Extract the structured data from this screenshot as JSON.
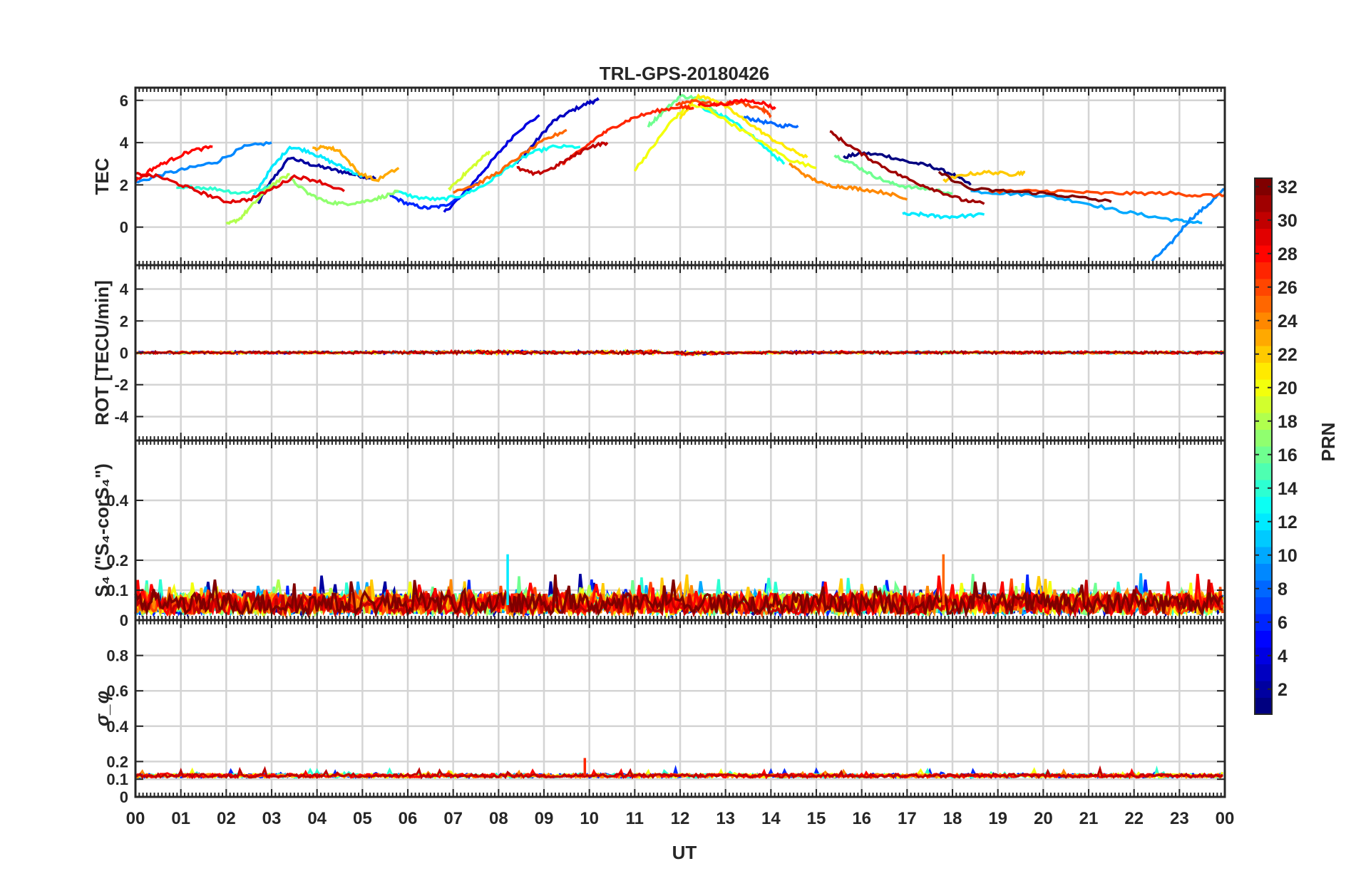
{
  "title": "TRL-GPS-20180426",
  "x_axis": {
    "label": "UT",
    "ticks": [
      "00",
      "01",
      "02",
      "03",
      "04",
      "05",
      "06",
      "07",
      "08",
      "09",
      "10",
      "11",
      "12",
      "13",
      "14",
      "15",
      "16",
      "17",
      "18",
      "19",
      "20",
      "21",
      "22",
      "23",
      "00"
    ]
  },
  "colorbar": {
    "label": "PRN",
    "range": [
      1,
      32
    ],
    "tick_labels": [
      "2",
      "4",
      "6",
      "8",
      "10",
      "12",
      "14",
      "16",
      "18",
      "20",
      "22",
      "24",
      "26",
      "28",
      "30",
      "32"
    ],
    "colormap": "jet"
  },
  "chart_data": [
    {
      "type": "line",
      "panel": "TEC",
      "ylabel": "TEC",
      "xlim": [
        0,
        24
      ],
      "ylim": [
        -1.8,
        6.6
      ],
      "yticks": [
        "0",
        "2",
        "4",
        "6"
      ],
      "grid": true,
      "series": [
        {
          "prn": 2,
          "x": [
            2.7,
            3.0,
            3.4,
            3.8,
            4.2,
            4.6,
            5.0,
            5.3
          ],
          "values": [
            1.1,
            2.2,
            3.3,
            3.0,
            2.8,
            2.6,
            2.4,
            2.3
          ]
        },
        {
          "prn": 3,
          "x": [
            8.4,
            8.8,
            9.2,
            9.6,
            10.0,
            10.2
          ],
          "values": [
            3.0,
            4.0,
            5.0,
            5.5,
            5.9,
            6.0
          ]
        },
        {
          "prn": 4,
          "x": [
            6.8,
            7.2,
            7.6,
            8.0,
            8.4,
            8.9
          ],
          "values": [
            0.7,
            1.5,
            2.5,
            3.5,
            4.5,
            5.3
          ]
        },
        {
          "prn": 1,
          "x": [
            15.6,
            16.0,
            16.5,
            17.0,
            17.5,
            18.0,
            18.4
          ],
          "values": [
            3.3,
            3.5,
            3.4,
            3.1,
            2.9,
            2.5,
            2.0
          ]
        },
        {
          "prn": 6,
          "x": [
            5.6,
            6.0,
            6.4,
            6.8,
            7.2,
            7.6
          ],
          "values": [
            1.5,
            1.1,
            0.9,
            1.0,
            1.5,
            2.2
          ]
        },
        {
          "prn": 9,
          "x": [
            0.0,
            0.6,
            1.2,
            1.8,
            2.4,
            3.0
          ],
          "values": [
            2.1,
            2.5,
            2.8,
            3.1,
            3.8,
            4.0
          ]
        },
        {
          "prn": 8,
          "x": [
            13.4,
            13.8,
            14.2,
            14.6
          ],
          "values": [
            5.2,
            5.0,
            4.8,
            4.8
          ]
        },
        {
          "prn": 10,
          "x": [
            18.4,
            19.2,
            20.0,
            20.8,
            21.6,
            22.4,
            23.0,
            23.5
          ],
          "values": [
            1.7,
            1.6,
            1.5,
            1.2,
            0.8,
            0.5,
            0.3,
            0.2
          ]
        },
        {
          "prn": 9,
          "x": [
            22.4,
            22.8,
            23.2,
            23.6,
            24.0
          ],
          "values": [
            -1.6,
            -0.8,
            0.3,
            1.0,
            1.8
          ]
        },
        {
          "prn": 12,
          "x": [
            2.6,
            3.0,
            3.4,
            3.8,
            4.2,
            4.6,
            5.0
          ],
          "values": [
            1.5,
            2.8,
            3.8,
            3.6,
            3.2,
            2.8,
            2.4
          ]
        },
        {
          "prn": 13,
          "x": [
            5.7,
            6.2,
            6.7,
            7.2,
            7.7,
            8.2,
            8.7,
            9.2,
            9.8
          ],
          "values": [
            1.7,
            1.4,
            1.3,
            1.5,
            2.0,
            2.8,
            3.5,
            3.8,
            3.8
          ]
        },
        {
          "prn": 12,
          "x": [
            16.9,
            17.3,
            17.7,
            18.1,
            18.7
          ],
          "values": [
            0.6,
            0.6,
            0.5,
            0.5,
            0.6
          ]
        },
        {
          "prn": 13,
          "x": [
            12.5,
            13.0,
            13.5,
            14.0,
            14.3
          ],
          "values": [
            5.6,
            5.2,
            4.5,
            3.5,
            3.0
          ]
        },
        {
          "prn": 14,
          "x": [
            0.9,
            1.3,
            1.8,
            2.3,
            2.8,
            3.1
          ],
          "values": [
            1.8,
            1.9,
            1.8,
            1.6,
            1.8,
            2.0
          ]
        },
        {
          "prn": 16,
          "x": [
            11.3,
            11.6,
            12.0,
            12.4,
            12.8
          ],
          "values": [
            4.8,
            5.4,
            6.2,
            6.1,
            5.5
          ]
        },
        {
          "prn": 16,
          "x": [
            15.4,
            15.8,
            16.2,
            16.6,
            17.0,
            17.5,
            18.0
          ],
          "values": [
            3.4,
            3.0,
            2.5,
            2.1,
            1.9,
            1.8,
            1.6
          ]
        },
        {
          "prn": 17,
          "x": [
            3.4,
            3.8,
            4.2,
            4.6,
            5.0,
            5.4,
            5.8
          ],
          "values": [
            2.3,
            1.6,
            1.2,
            1.1,
            1.2,
            1.4,
            1.7
          ]
        },
        {
          "prn": 18,
          "x": [
            2.0,
            2.3,
            2.6,
            3.0,
            3.4
          ],
          "values": [
            0.1,
            0.4,
            1.1,
            2.0,
            2.5
          ]
        },
        {
          "prn": 19,
          "x": [
            6.9,
            7.2,
            7.5,
            7.8
          ],
          "values": [
            1.8,
            2.4,
            3.0,
            3.6
          ]
        },
        {
          "prn": 20,
          "x": [
            11.0,
            11.4,
            11.8,
            12.2,
            12.6,
            13.2,
            13.8,
            14.4,
            15.0
          ],
          "values": [
            2.7,
            3.8,
            5.0,
            5.8,
            5.6,
            4.8,
            4.0,
            3.2,
            2.8
          ]
        },
        {
          "prn": 21,
          "x": [
            12.0,
            12.4,
            12.8,
            13.2,
            13.6,
            14.0,
            14.4,
            14.8
          ],
          "values": [
            5.2,
            6.2,
            6.0,
            5.4,
            4.8,
            4.2,
            3.7,
            3.3
          ]
        },
        {
          "prn": 22,
          "x": [
            17.8,
            18.3,
            18.8,
            19.3,
            19.6
          ],
          "values": [
            2.2,
            2.5,
            2.6,
            2.5,
            2.6
          ]
        },
        {
          "prn": 23,
          "x": [
            3.9,
            4.2,
            4.5,
            4.9,
            5.3,
            5.8
          ],
          "values": [
            3.7,
            3.8,
            3.6,
            2.6,
            2.2,
            2.8
          ]
        },
        {
          "prn": 24,
          "x": [
            14.4,
            14.8,
            15.2,
            15.6,
            16.0,
            16.6,
            17.0
          ],
          "values": [
            3.0,
            2.4,
            2.0,
            1.9,
            1.8,
            1.6,
            1.3
          ]
        },
        {
          "prn": 25,
          "x": [
            7.0,
            7.5,
            8.0,
            8.5,
            9.0,
            9.5
          ],
          "values": [
            1.7,
            2.0,
            2.6,
            3.4,
            4.1,
            4.6
          ]
        },
        {
          "prn": 26,
          "x": [
            11.9,
            12.3,
            12.8,
            13.3,
            13.8,
            14.0
          ],
          "values": [
            5.8,
            6.0,
            5.8,
            5.9,
            5.6,
            5.3
          ]
        },
        {
          "prn": 26,
          "x": [
            18.8,
            19.6,
            20.4,
            21.2,
            22.0,
            22.8,
            23.4,
            24.0
          ],
          "values": [
            1.7,
            1.7,
            1.7,
            1.6,
            1.6,
            1.6,
            1.5,
            1.5
          ]
        },
        {
          "prn": 27,
          "x": [
            9.4,
            9.8,
            10.2,
            10.6,
            11.0,
            11.5,
            12.0,
            12.3
          ],
          "values": [
            3.0,
            3.6,
            4.3,
            4.8,
            5.2,
            5.5,
            5.7,
            5.6
          ]
        },
        {
          "prn": 28,
          "x": [
            12.4,
            12.9,
            13.4,
            13.8,
            14.1
          ],
          "values": [
            5.8,
            5.8,
            6.0,
            5.9,
            5.6
          ]
        },
        {
          "prn": 28,
          "x": [
            0.0,
            0.4,
            0.8,
            1.2,
            1.7
          ],
          "values": [
            2.2,
            2.8,
            3.2,
            3.6,
            3.8
          ]
        },
        {
          "prn": 29,
          "x": [
            0.0,
            0.5,
            1.0,
            1.5,
            2.0,
            2.5,
            3.0,
            3.5,
            4.0,
            4.6
          ],
          "values": [
            2.5,
            2.4,
            2.0,
            1.6,
            1.2,
            1.3,
            1.8,
            2.4,
            2.2,
            1.7
          ]
        },
        {
          "prn": 30,
          "x": [
            8.4,
            8.8,
            9.2,
            9.6,
            10.0,
            10.4
          ],
          "values": [
            2.8,
            2.5,
            2.8,
            3.3,
            3.8,
            4.0
          ]
        },
        {
          "prn": 31,
          "x": [
            15.3,
            15.7,
            16.2,
            16.7,
            17.2,
            17.7,
            18.2,
            18.7
          ],
          "values": [
            4.5,
            3.9,
            3.2,
            2.6,
            2.1,
            1.7,
            1.3,
            1.1
          ]
        },
        {
          "prn": 32,
          "x": [
            17.7,
            18.4,
            19.2,
            20.0,
            20.8,
            21.5
          ],
          "values": [
            2.6,
            1.8,
            1.7,
            1.6,
            1.4,
            1.2
          ]
        }
      ]
    },
    {
      "type": "line",
      "panel": "ROT",
      "ylabel": "ROT [TECU/min]",
      "xlim": [
        0,
        24
      ],
      "ylim": [
        -5.5,
        5.5
      ],
      "yticks": [
        "-4",
        "-2",
        "0",
        "2",
        "4"
      ],
      "grid": true,
      "series_note_shown": false,
      "envelope": {
        "x": [
          0,
          2,
          4,
          6,
          8,
          10,
          11.5,
          12,
          14,
          16,
          18,
          20,
          22,
          24
        ],
        "values": [
          0.05,
          0.1,
          0.08,
          0.1,
          0.15,
          0.12,
          0.2,
          -0.2,
          0.1,
          0.1,
          0.08,
          0.08,
          0.08,
          0.08
        ]
      }
    },
    {
      "type": "line",
      "panel": "S4",
      "ylabel": "S₄ (\"S₄-corS₄\")",
      "xlim": [
        0,
        24
      ],
      "ylim": [
        0,
        0.6
      ],
      "yticks": [
        "0",
        "0.1",
        "0.2",
        "0.4"
      ],
      "grid": true,
      "typical_range": [
        0.02,
        0.12
      ],
      "peaks": [
        {
          "x": 8.2,
          "value": 0.22
        },
        {
          "x": 17.8,
          "value": 0.22
        }
      ]
    },
    {
      "type": "line",
      "panel": "sigma_phi",
      "ylabel": "σ_φ",
      "xlim": [
        0,
        24
      ],
      "ylim": [
        0,
        1.0
      ],
      "yticks": [
        "0",
        "0.1",
        "0.2",
        "0.4",
        "0.6",
        "0.8"
      ],
      "grid": true,
      "typical_level": 0.12,
      "peaks": [
        {
          "x": 9.9,
          "value": 0.22
        }
      ]
    }
  ]
}
